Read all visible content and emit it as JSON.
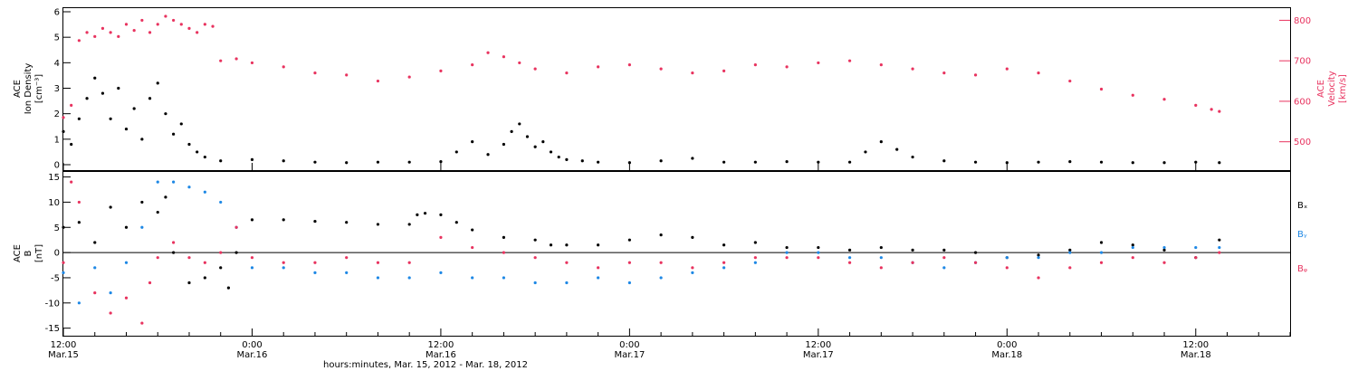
{
  "colors": {
    "black": "#000000",
    "pink": "#e8335f",
    "blue": "#1e88e5"
  },
  "x_axis": {
    "range_hours": [
      0,
      78
    ],
    "ticks": [
      {
        "hour": 0,
        "time": "12:00",
        "date": "Mar.15"
      },
      {
        "hour": 12,
        "time": "0:00",
        "date": "Mar.16"
      },
      {
        "hour": 24,
        "time": "12:00",
        "date": "Mar.16"
      },
      {
        "hour": 36,
        "time": "0:00",
        "date": "Mar.17"
      },
      {
        "hour": 48,
        "time": "12:00",
        "date": "Mar.17"
      },
      {
        "hour": 60,
        "time": "0:00",
        "date": "Mar.18"
      },
      {
        "hour": 72,
        "time": "12:00",
        "date": "Mar.18"
      }
    ],
    "title": "hours:minutes, Mar. 15, 2012 - Mar. 18, 2012"
  },
  "chart_data": [
    {
      "type": "scatter",
      "panel": "top",
      "ylabel_left": [
        "ACE",
        "Ion Density",
        "[cm⁻³]"
      ],
      "ylabel_right": [
        "ACE",
        "Velocity",
        "[km/s]"
      ],
      "ylim_left": [
        0,
        6
      ],
      "ylim_right": [
        430,
        830
      ],
      "yticks_left": [
        0,
        1,
        2,
        3,
        4,
        5,
        6
      ],
      "yticks_right": [
        500,
        600,
        700,
        800
      ],
      "series": [
        {
          "axis": "left",
          "color": "black",
          "x": [
            0,
            0.5,
            1,
            1.5,
            2,
            2.5,
            3,
            3.5,
            4,
            4.5,
            5,
            5.5,
            6,
            6.5,
            7,
            7.5,
            8,
            8.5,
            9,
            10,
            12,
            14,
            16,
            18,
            20,
            22,
            24,
            25,
            26,
            27,
            28,
            28.5,
            29,
            29.5,
            30,
            30.5,
            31,
            31.5,
            32,
            33,
            34,
            36,
            38,
            40,
            42,
            44,
            46,
            48,
            50,
            51,
            52,
            53,
            54,
            56,
            58,
            60,
            62,
            64,
            66,
            68,
            70,
            72,
            73.5
          ],
          "y": [
            1.3,
            0.8,
            1.8,
            2.6,
            3.4,
            2.8,
            1.8,
            3.0,
            1.4,
            2.2,
            1.0,
            2.6,
            3.2,
            2.0,
            1.2,
            1.6,
            0.8,
            0.5,
            0.3,
            0.15,
            0.2,
            0.15,
            0.1,
            0.08,
            0.1,
            0.1,
            0.12,
            0.5,
            0.9,
            0.4,
            0.8,
            1.3,
            1.6,
            1.1,
            0.7,
            0.9,
            0.5,
            0.3,
            0.2,
            0.15,
            0.1,
            0.08,
            0.15,
            0.25,
            0.1,
            0.1,
            0.12,
            0.1,
            0.1,
            0.5,
            0.9,
            0.6,
            0.3,
            0.15,
            0.1,
            0.08,
            0.1,
            0.12,
            0.1,
            0.08,
            0.08,
            0.1,
            0.08
          ]
        },
        {
          "axis": "right",
          "color": "pink",
          "x": [
            0,
            0.5,
            1,
            1.5,
            2,
            2.5,
            3,
            3.5,
            4,
            4.5,
            5,
            5.5,
            6,
            6.5,
            7,
            7.5,
            8,
            8.5,
            9,
            9.5,
            10,
            11,
            12,
            14,
            16,
            18,
            20,
            22,
            24,
            26,
            27,
            28,
            29,
            30,
            32,
            34,
            36,
            38,
            40,
            42,
            44,
            46,
            48,
            50,
            52,
            54,
            56,
            58,
            60,
            62,
            64,
            66,
            68,
            70,
            72,
            73,
            73.5
          ],
          "y": [
            560,
            590,
            750,
            770,
            760,
            780,
            770,
            760,
            790,
            775,
            800,
            770,
            790,
            810,
            800,
            790,
            780,
            770,
            790,
            785,
            700,
            705,
            695,
            685,
            670,
            665,
            650,
            660,
            675,
            690,
            720,
            710,
            695,
            680,
            670,
            685,
            690,
            680,
            670,
            675,
            690,
            685,
            695,
            700,
            690,
            680,
            670,
            665,
            680,
            670,
            650,
            630,
            615,
            605,
            590,
            580,
            575
          ]
        }
      ]
    },
    {
      "type": "scatter",
      "panel": "bottom",
      "ylabel_left": [
        "ACE",
        "B",
        "[nT]"
      ],
      "ylim": [
        -16.5,
        16
      ],
      "yticks": [
        -15,
        -10,
        -5,
        0,
        5,
        10,
        15
      ],
      "zero_line": true,
      "legend": [
        "Bₓ",
        "Bᵧ",
        "Bᵩ"
      ],
      "legend_colors": [
        "black",
        "blue",
        "pink"
      ],
      "series": [
        {
          "name": "Bx",
          "color": "black",
          "x": [
            0,
            1,
            2,
            3,
            4,
            5,
            6,
            6.5,
            7,
            8,
            9,
            10,
            10.5,
            11,
            12,
            14,
            16,
            18,
            20,
            22,
            22.5,
            23,
            24,
            25,
            26,
            28,
            30,
            31,
            32,
            34,
            36,
            38,
            40,
            42,
            44,
            46,
            48,
            50,
            52,
            54,
            56,
            58,
            60,
            62,
            64,
            66,
            68,
            70,
            72,
            73.5
          ],
          "y": [
            5,
            6,
            2,
            9,
            5,
            10,
            8,
            11,
            0,
            -6,
            -5,
            -3,
            -7,
            0,
            6.5,
            6.5,
            6.2,
            6.0,
            5.6,
            5.6,
            7.5,
            7.8,
            7.5,
            6,
            4.5,
            3,
            2.5,
            1.5,
            1.5,
            1.5,
            2.5,
            3.5,
            3.0,
            1.5,
            2.0,
            1.0,
            1.0,
            0.5,
            1.0,
            0.5,
            0.5,
            0.0,
            -1.0,
            -0.5,
            0.5,
            2.0,
            1.5,
            0.5,
            -1.0,
            2.5
          ]
        },
        {
          "name": "By",
          "color": "blue",
          "x": [
            0,
            1,
            2,
            3,
            4,
            5,
            6,
            7,
            8,
            9,
            10,
            11,
            12,
            14,
            16,
            18,
            20,
            22,
            24,
            26,
            28,
            30,
            32,
            34,
            36,
            38,
            40,
            42,
            44,
            46,
            48,
            50,
            52,
            54,
            56,
            58,
            60,
            62,
            64,
            66,
            68,
            70,
            72,
            73.5
          ],
          "y": [
            -4,
            -10,
            -3,
            -8,
            -2,
            5,
            14,
            14,
            13,
            12,
            10,
            5,
            -3,
            -3,
            -4,
            -4,
            -5,
            -5,
            -4,
            -5,
            -5,
            -6,
            -6,
            -5,
            -6,
            -5,
            -4,
            -3,
            -2,
            0,
            0,
            -1,
            -1,
            -2,
            -3,
            -2,
            -1,
            -1,
            0,
            0,
            1,
            1,
            1,
            1
          ]
        },
        {
          "name": "Bz",
          "color": "pink",
          "x": [
            0,
            0.5,
            1,
            2,
            3,
            4,
            5,
            5.5,
            6,
            7,
            8,
            9,
            10,
            11,
            12,
            14,
            16,
            18,
            20,
            22,
            24,
            26,
            28,
            30,
            32,
            34,
            36,
            38,
            40,
            42,
            44,
            46,
            48,
            50,
            52,
            54,
            56,
            58,
            60,
            62,
            64,
            66,
            68,
            70,
            72,
            73.5
          ],
          "y": [
            -2,
            14,
            10,
            -8,
            -12,
            -9,
            -14,
            -6,
            -1,
            2,
            -1,
            -2,
            0,
            5,
            -1,
            -2,
            -2,
            -1,
            -2,
            -2,
            3,
            1,
            0,
            -1,
            -2,
            -3,
            -2,
            -2,
            -3,
            -2,
            -1,
            -1,
            -1,
            -2,
            -3,
            -2,
            -1,
            -2,
            -3,
            -5,
            -3,
            -2,
            -1,
            -2,
            -1,
            0
          ]
        }
      ]
    }
  ]
}
